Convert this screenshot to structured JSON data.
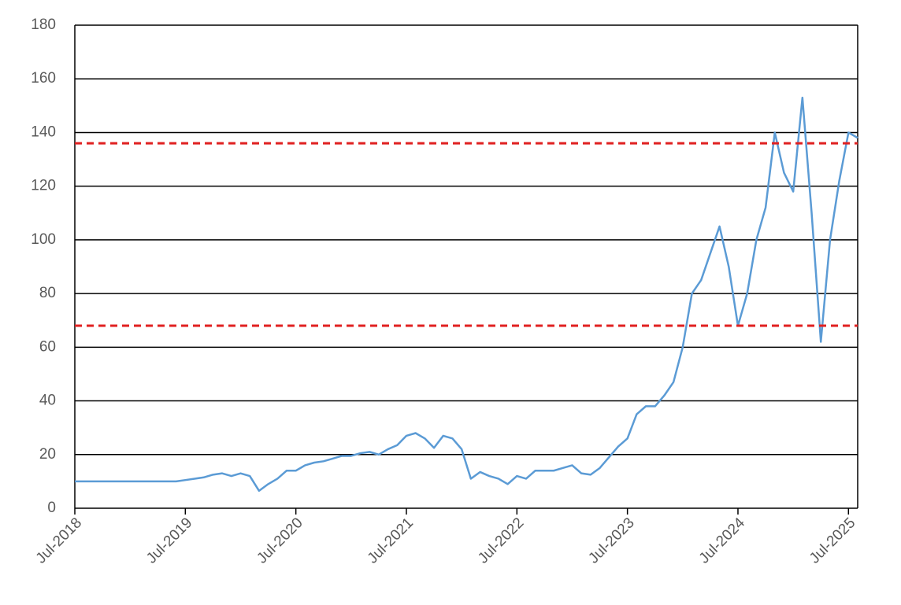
{
  "chart_data": {
    "type": "line",
    "x": [
      "2018-07",
      "2018-08",
      "2018-09",
      "2018-10",
      "2018-11",
      "2018-12",
      "2019-01",
      "2019-02",
      "2019-03",
      "2019-04",
      "2019-05",
      "2019-06",
      "2019-07",
      "2019-08",
      "2019-09",
      "2019-10",
      "2019-11",
      "2019-12",
      "2020-01",
      "2020-02",
      "2020-03",
      "2020-04",
      "2020-05",
      "2020-06",
      "2020-07",
      "2020-08",
      "2020-09",
      "2020-10",
      "2020-11",
      "2020-12",
      "2021-01",
      "2021-02",
      "2021-03",
      "2021-04",
      "2021-05",
      "2021-06",
      "2021-07",
      "2021-08",
      "2021-09",
      "2021-10",
      "2021-11",
      "2021-12",
      "2022-01",
      "2022-02",
      "2022-03",
      "2022-04",
      "2022-05",
      "2022-06",
      "2022-07",
      "2022-08",
      "2022-09",
      "2022-10",
      "2022-11",
      "2022-12",
      "2023-01",
      "2023-02",
      "2023-03",
      "2023-04",
      "2023-05",
      "2023-06",
      "2023-07",
      "2023-08",
      "2023-09",
      "2023-10",
      "2023-11",
      "2023-12",
      "2024-01",
      "2024-02",
      "2024-03",
      "2024-04",
      "2024-05",
      "2024-06",
      "2024-07",
      "2024-08",
      "2024-09",
      "2024-10",
      "2024-11",
      "2024-12",
      "2025-01",
      "2025-02",
      "2025-03",
      "2025-04",
      "2025-05",
      "2025-06",
      "2025-07",
      "2025-08"
    ],
    "series": [
      {
        "color": "#5b9bd5",
        "values": [
          10,
          10,
          10,
          10,
          10,
          10,
          10,
          10,
          10,
          10,
          10,
          10,
          10.5,
          11,
          11.5,
          12.5,
          13,
          12,
          13,
          12,
          6.5,
          9,
          11,
          14,
          14,
          16,
          17,
          17.5,
          18.5,
          19.5,
          19.5,
          20.5,
          21,
          20,
          22,
          23.5,
          27,
          28,
          26,
          22.5,
          27,
          26,
          22,
          11,
          13.5,
          12,
          11,
          9,
          12,
          11,
          14,
          14,
          14,
          15,
          16,
          13,
          12.5,
          15,
          19,
          23,
          26,
          35,
          38,
          38,
          42,
          47,
          60,
          80,
          85,
          95,
          105,
          90,
          68,
          80,
          100,
          112,
          140,
          125,
          118,
          153,
          110,
          62,
          100,
          122,
          140,
          138
        ]
      }
    ],
    "reference_lines": [
      {
        "value": 136,
        "color": "#e02020"
      },
      {
        "value": 68,
        "color": "#e02020"
      }
    ],
    "xlim": [
      "2018-07",
      "2025-08"
    ],
    "xticks": [
      {
        "value": "2018-07",
        "label": "Jul-2018"
      },
      {
        "value": "2019-07",
        "label": "Jul-2019"
      },
      {
        "value": "2020-07",
        "label": "Jul-2020"
      },
      {
        "value": "2021-07",
        "label": "Jul-2021"
      },
      {
        "value": "2022-07",
        "label": "Jul-2022"
      },
      {
        "value": "2023-07",
        "label": "Jul-2023"
      },
      {
        "value": "2024-07",
        "label": "Jul-2024"
      },
      {
        "value": "2025-07",
        "label": "Jul-2025"
      }
    ],
    "ylim": [
      0,
      180
    ],
    "yticks": [
      0,
      20,
      40,
      60,
      80,
      100,
      120,
      140,
      160,
      180
    ],
    "grid": true
  }
}
